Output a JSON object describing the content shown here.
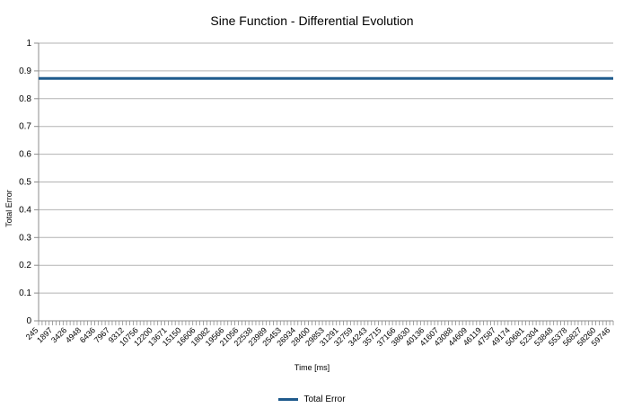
{
  "chart_data": {
    "type": "line",
    "title": "Sine Function - Differential Evolution",
    "xlabel": "Time [ms]",
    "ylabel": "Total Error",
    "ylim": [
      0,
      1
    ],
    "yticks": [
      "0",
      "0.1",
      "0.2",
      "0.3",
      "0.4",
      "0.5",
      "0.6",
      "0.7",
      "0.8",
      "0.9",
      "1"
    ],
    "x_tick_labels": [
      "245",
      "1897",
      "3426",
      "4948",
      "6436",
      "7967",
      "9312",
      "10756",
      "12200",
      "13671",
      "15150",
      "16606",
      "18082",
      "19566",
      "21056",
      "22538",
      "23989",
      "25453",
      "26934",
      "28400",
      "29853",
      "31291",
      "32759",
      "34243",
      "35715",
      "37166",
      "38630",
      "40136",
      "41607",
      "43088",
      "44609",
      "46119",
      "47587",
      "49174",
      "50681",
      "52304",
      "53848",
      "55378",
      "56827",
      "58260",
      "59746"
    ],
    "minor_tick_count": 164,
    "grid": true,
    "legend_position": "bottom",
    "series": [
      {
        "name": "Total Error",
        "color": "#1f5a8c",
        "values": [
          0.873,
          0.873
        ]
      }
    ]
  },
  "legend": {
    "label": "Total Error"
  }
}
